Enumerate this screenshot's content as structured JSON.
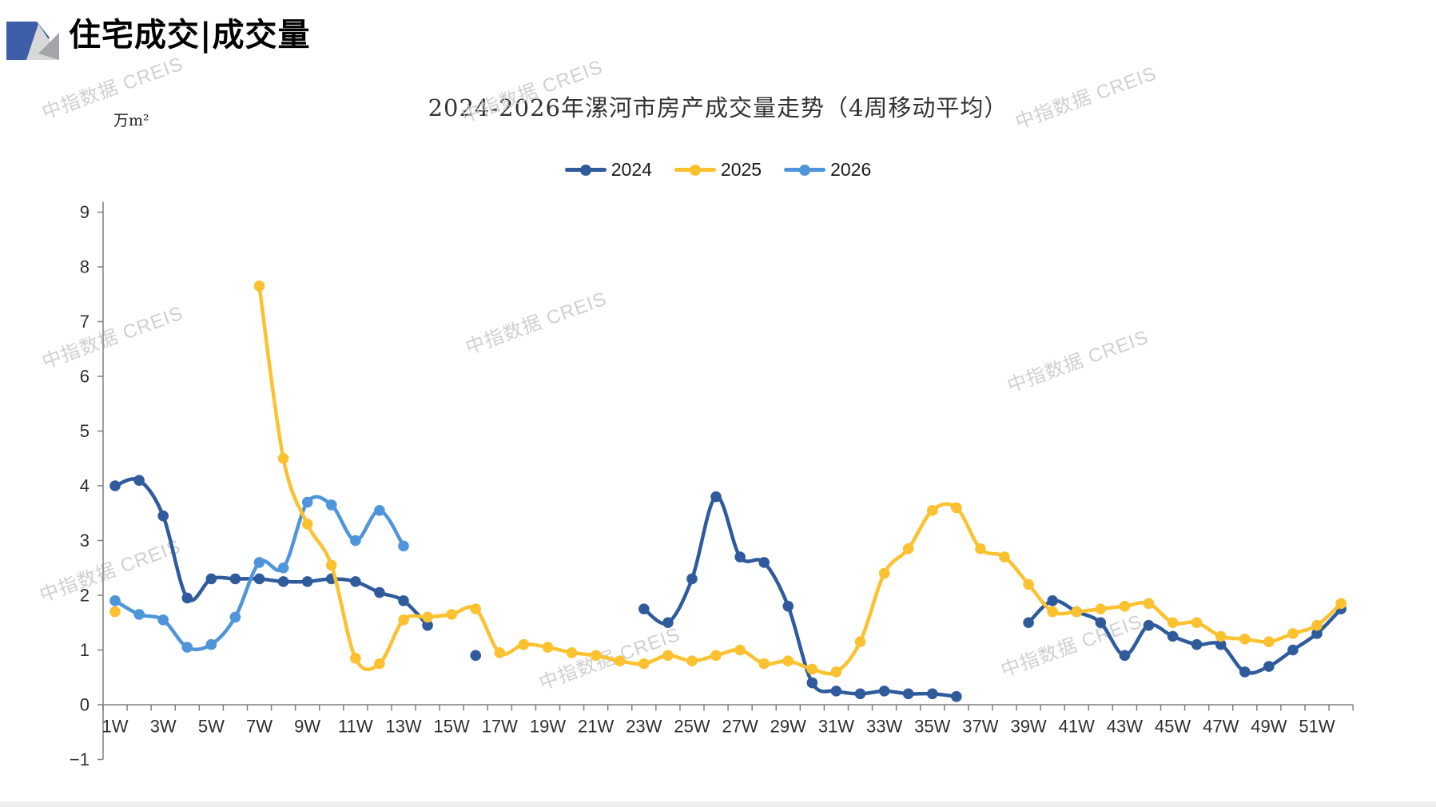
{
  "page": {
    "header_title": "住宅成交|成交量",
    "watermark_text": "中指数据 CREIS"
  },
  "chart_data": {
    "type": "line",
    "title": "2024-2026年漯河市房产成交量走势（4周移动平均）",
    "unit_label": "万m²",
    "grid": false,
    "legend_position": "top-center",
    "x_axis": {
      "categories_count": 52,
      "tick_labels": [
        "1W",
        "3W",
        "5W",
        "7W",
        "9W",
        "11W",
        "13W",
        "15W",
        "17W",
        "19W",
        "21W",
        "23W",
        "25W",
        "27W",
        "29W",
        "31W",
        "33W",
        "35W",
        "37W",
        "39W",
        "41W",
        "43W",
        "45W",
        "47W",
        "49W",
        "51W"
      ]
    },
    "y_axis": {
      "min": -1,
      "max": 9,
      "ticks": [
        9,
        8,
        7,
        6,
        5,
        4,
        3,
        2,
        1,
        0,
        -1
      ]
    },
    "axis_color": "#7F7F7F",
    "label_color": "#303030",
    "series": [
      {
        "name": "2024",
        "color": "#2F5B9D",
        "z": 1,
        "values": [
          4.0,
          4.1,
          3.45,
          1.95,
          2.3,
          2.3,
          2.3,
          2.25,
          2.25,
          2.3,
          2.25,
          2.05,
          1.9,
          1.45,
          null,
          0.9,
          null,
          null,
          null,
          null,
          null,
          null,
          1.75,
          1.5,
          2.3,
          3.8,
          2.7,
          2.6,
          1.8,
          0.4,
          0.25,
          0.2,
          0.25,
          0.2,
          0.2,
          0.15,
          null,
          null,
          1.5,
          1.9,
          1.7,
          1.5,
          0.9,
          1.45,
          1.25,
          1.1,
          1.1,
          0.6,
          0.7,
          1.0,
          1.3,
          1.75
        ]
      },
      {
        "name": "2025",
        "color": "#FCC12E",
        "z": 3,
        "values": [
          1.7,
          null,
          null,
          null,
          null,
          null,
          7.65,
          4.5,
          3.3,
          2.55,
          0.85,
          0.75,
          1.55,
          1.6,
          1.65,
          1.75,
          0.95,
          1.1,
          1.05,
          0.95,
          0.9,
          0.8,
          0.75,
          0.9,
          0.8,
          0.9,
          1.0,
          0.75,
          0.8,
          0.65,
          0.6,
          1.15,
          2.4,
          2.85,
          3.55,
          3.6,
          2.85,
          2.7,
          2.2,
          1.7,
          1.7,
          1.75,
          1.8,
          1.85,
          1.5,
          1.5,
          1.25,
          1.2,
          1.15,
          1.3,
          1.45,
          1.85
        ]
      },
      {
        "name": "2026",
        "color": "#4E95D9",
        "z": 2,
        "values": [
          1.9,
          1.65,
          1.55,
          1.05,
          1.1,
          1.6,
          2.6,
          2.5,
          3.7,
          3.65,
          3.0,
          3.55,
          2.9,
          null,
          null,
          null,
          null,
          null,
          null,
          null,
          null,
          null,
          null,
          null,
          null,
          null,
          null,
          null,
          null,
          null,
          null,
          null,
          null,
          null,
          null,
          null,
          null,
          null,
          null,
          null,
          null,
          null,
          null,
          null,
          null,
          null,
          null,
          null,
          null,
          null,
          null,
          null
        ]
      }
    ]
  }
}
